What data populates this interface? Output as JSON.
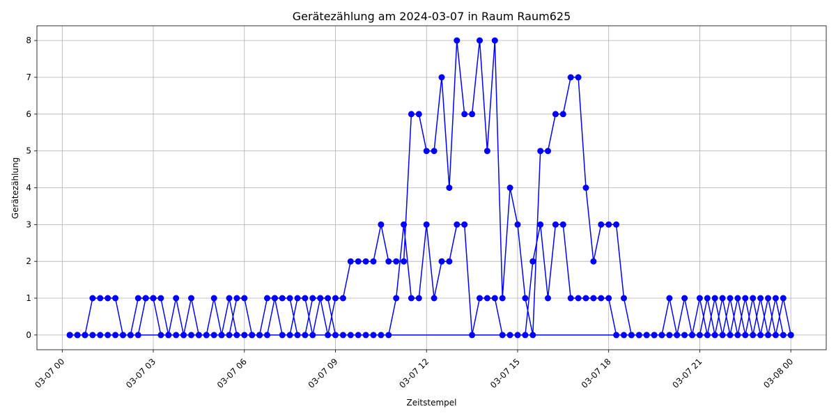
{
  "chart_data": {
    "type": "line",
    "title": "Gerätezählung am 2024-03-07 in Raum Raum625",
    "xlabel": "Zeitstempel",
    "ylabel": "Gerätezählung",
    "x_unit": "minutes from 2024-03-07 00:00",
    "xlim": [
      -50,
      1510
    ],
    "ylim": [
      -0.4,
      8.4
    ],
    "x_ticks": [
      {
        "value": 0,
        "label": "03-07 00"
      },
      {
        "value": 180,
        "label": "03-07 03"
      },
      {
        "value": 360,
        "label": "03-07 06"
      },
      {
        "value": 540,
        "label": "03-07 09"
      },
      {
        "value": 720,
        "label": "03-07 12"
      },
      {
        "value": 900,
        "label": "03-07 15"
      },
      {
        "value": 1080,
        "label": "03-07 18"
      },
      {
        "value": 1260,
        "label": "03-07 21"
      },
      {
        "value": 1440,
        "label": "03-08 00"
      }
    ],
    "y_ticks": [
      0,
      1,
      2,
      3,
      4,
      5,
      6,
      7,
      8
    ],
    "grid": true,
    "color": "#0000ff",
    "series": [
      {
        "name": "",
        "points": [
          [
            15,
            0
          ],
          [
            30,
            0
          ],
          [
            45,
            0
          ],
          [
            60,
            1
          ],
          [
            75,
            1
          ],
          [
            90,
            1
          ],
          [
            105,
            1
          ],
          [
            120,
            0
          ],
          [
            135,
            0
          ],
          [
            150,
            1
          ],
          [
            165,
            1
          ],
          [
            180,
            1
          ],
          [
            195,
            0
          ],
          [
            210,
            0
          ],
          [
            225,
            1
          ],
          [
            240,
            0
          ],
          [
            255,
            0
          ],
          [
            270,
            0
          ],
          [
            285,
            0
          ],
          [
            300,
            1
          ],
          [
            315,
            0
          ],
          [
            330,
            1
          ],
          [
            345,
            0
          ],
          [
            360,
            0
          ],
          [
            375,
            0
          ],
          [
            390,
            0
          ],
          [
            405,
            1
          ],
          [
            420,
            1
          ],
          [
            435,
            0
          ],
          [
            450,
            0
          ],
          [
            465,
            1
          ],
          [
            480,
            1
          ],
          [
            495,
            0
          ],
          [
            510,
            1
          ],
          [
            525,
            1
          ],
          [
            540,
            0
          ],
          [
            555,
            0
          ],
          [
            570,
            0
          ],
          [
            585,
            0
          ],
          [
            600,
            0
          ],
          [
            615,
            0
          ],
          [
            630,
            0
          ],
          [
            645,
            0
          ],
          [
            660,
            1
          ],
          [
            675,
            3
          ],
          [
            690,
            1
          ],
          [
            705,
            1
          ],
          [
            720,
            3
          ],
          [
            735,
            1
          ],
          [
            750,
            2
          ],
          [
            765,
            2
          ],
          [
            780,
            3
          ],
          [
            795,
            3
          ],
          [
            810,
            0
          ],
          [
            825,
            1
          ],
          [
            840,
            1
          ],
          [
            855,
            1
          ],
          [
            870,
            0
          ],
          [
            885,
            0
          ],
          [
            900,
            0
          ],
          [
            915,
            0
          ],
          [
            930,
            2
          ],
          [
            945,
            3
          ],
          [
            960,
            1
          ],
          [
            975,
            3
          ],
          [
            990,
            3
          ],
          [
            1005,
            1
          ],
          [
            1020,
            1
          ],
          [
            1035,
            1
          ],
          [
            1050,
            1
          ],
          [
            1065,
            1
          ],
          [
            1080,
            1
          ],
          [
            1095,
            0
          ],
          [
            1110,
            0
          ],
          [
            1125,
            0
          ],
          [
            1140,
            0
          ],
          [
            1155,
            0
          ],
          [
            1170,
            0
          ],
          [
            1185,
            0
          ],
          [
            1200,
            1
          ],
          [
            1215,
            0
          ],
          [
            1230,
            0
          ],
          [
            1245,
            0
          ],
          [
            1260,
            1
          ],
          [
            1275,
            0
          ],
          [
            1290,
            1
          ],
          [
            1305,
            0
          ],
          [
            1320,
            1
          ],
          [
            1335,
            0
          ],
          [
            1350,
            1
          ],
          [
            1365,
            0
          ],
          [
            1380,
            1
          ],
          [
            1395,
            0
          ],
          [
            1410,
            1
          ],
          [
            1425,
            0
          ],
          [
            1440,
            0
          ],
          [
            15,
            0
          ]
        ],
        "points_upper": [
          [
            15,
            0
          ],
          [
            1440,
            0
          ],
          [
            1425,
            1
          ],
          [
            1410,
            0
          ],
          [
            1395,
            1
          ],
          [
            1380,
            0
          ],
          [
            1365,
            1
          ],
          [
            1350,
            0
          ],
          [
            1335,
            1
          ],
          [
            1320,
            0
          ],
          [
            1305,
            1
          ],
          [
            1290,
            0
          ],
          [
            1275,
            1
          ],
          [
            1260,
            0
          ],
          [
            1245,
            0
          ],
          [
            1230,
            1
          ],
          [
            1215,
            0
          ],
          [
            1200,
            0
          ],
          [
            1185,
            0
          ],
          [
            1170,
            0
          ],
          [
            1155,
            0
          ],
          [
            1140,
            0
          ],
          [
            1125,
            0
          ],
          [
            1110,
            1
          ],
          [
            1095,
            3
          ],
          [
            1080,
            3
          ],
          [
            1065,
            3
          ],
          [
            1050,
            2
          ],
          [
            1035,
            4
          ],
          [
            1020,
            7
          ],
          [
            1005,
            7
          ],
          [
            990,
            6
          ],
          [
            975,
            6
          ],
          [
            960,
            5
          ],
          [
            945,
            5
          ],
          [
            930,
            0
          ],
          [
            915,
            1
          ],
          [
            900,
            3
          ],
          [
            885,
            4
          ],
          [
            870,
            1
          ],
          [
            855,
            8
          ],
          [
            840,
            5
          ],
          [
            825,
            8
          ],
          [
            810,
            6
          ],
          [
            795,
            6
          ],
          [
            780,
            8
          ],
          [
            765,
            4
          ],
          [
            750,
            7
          ],
          [
            735,
            5
          ],
          [
            720,
            5
          ],
          [
            705,
            6
          ],
          [
            690,
            6
          ],
          [
            675,
            2
          ],
          [
            660,
            2
          ],
          [
            645,
            2
          ],
          [
            630,
            3
          ],
          [
            615,
            2
          ],
          [
            600,
            2
          ],
          [
            585,
            2
          ],
          [
            570,
            2
          ],
          [
            555,
            1
          ],
          [
            540,
            1
          ],
          [
            525,
            0
          ],
          [
            510,
            1
          ],
          [
            495,
            1
          ],
          [
            480,
            0
          ],
          [
            465,
            0
          ],
          [
            450,
            1
          ],
          [
            435,
            1
          ],
          [
            420,
            1
          ],
          [
            405,
            0
          ],
          [
            390,
            0
          ],
          [
            375,
            0
          ],
          [
            360,
            1
          ],
          [
            345,
            1
          ],
          [
            330,
            0
          ],
          [
            315,
            0
          ],
          [
            300,
            0
          ],
          [
            285,
            0
          ],
          [
            270,
            0
          ],
          [
            255,
            1
          ],
          [
            240,
            0
          ],
          [
            225,
            0
          ],
          [
            210,
            0
          ],
          [
            195,
            1
          ],
          [
            180,
            1
          ],
          [
            165,
            1
          ],
          [
            150,
            0
          ],
          [
            135,
            0
          ],
          [
            120,
            0
          ],
          [
            105,
            0
          ],
          [
            90,
            0
          ],
          [
            75,
            0
          ],
          [
            60,
            0
          ],
          [
            45,
            0
          ],
          [
            30,
            0
          ]
        ]
      }
    ]
  }
}
